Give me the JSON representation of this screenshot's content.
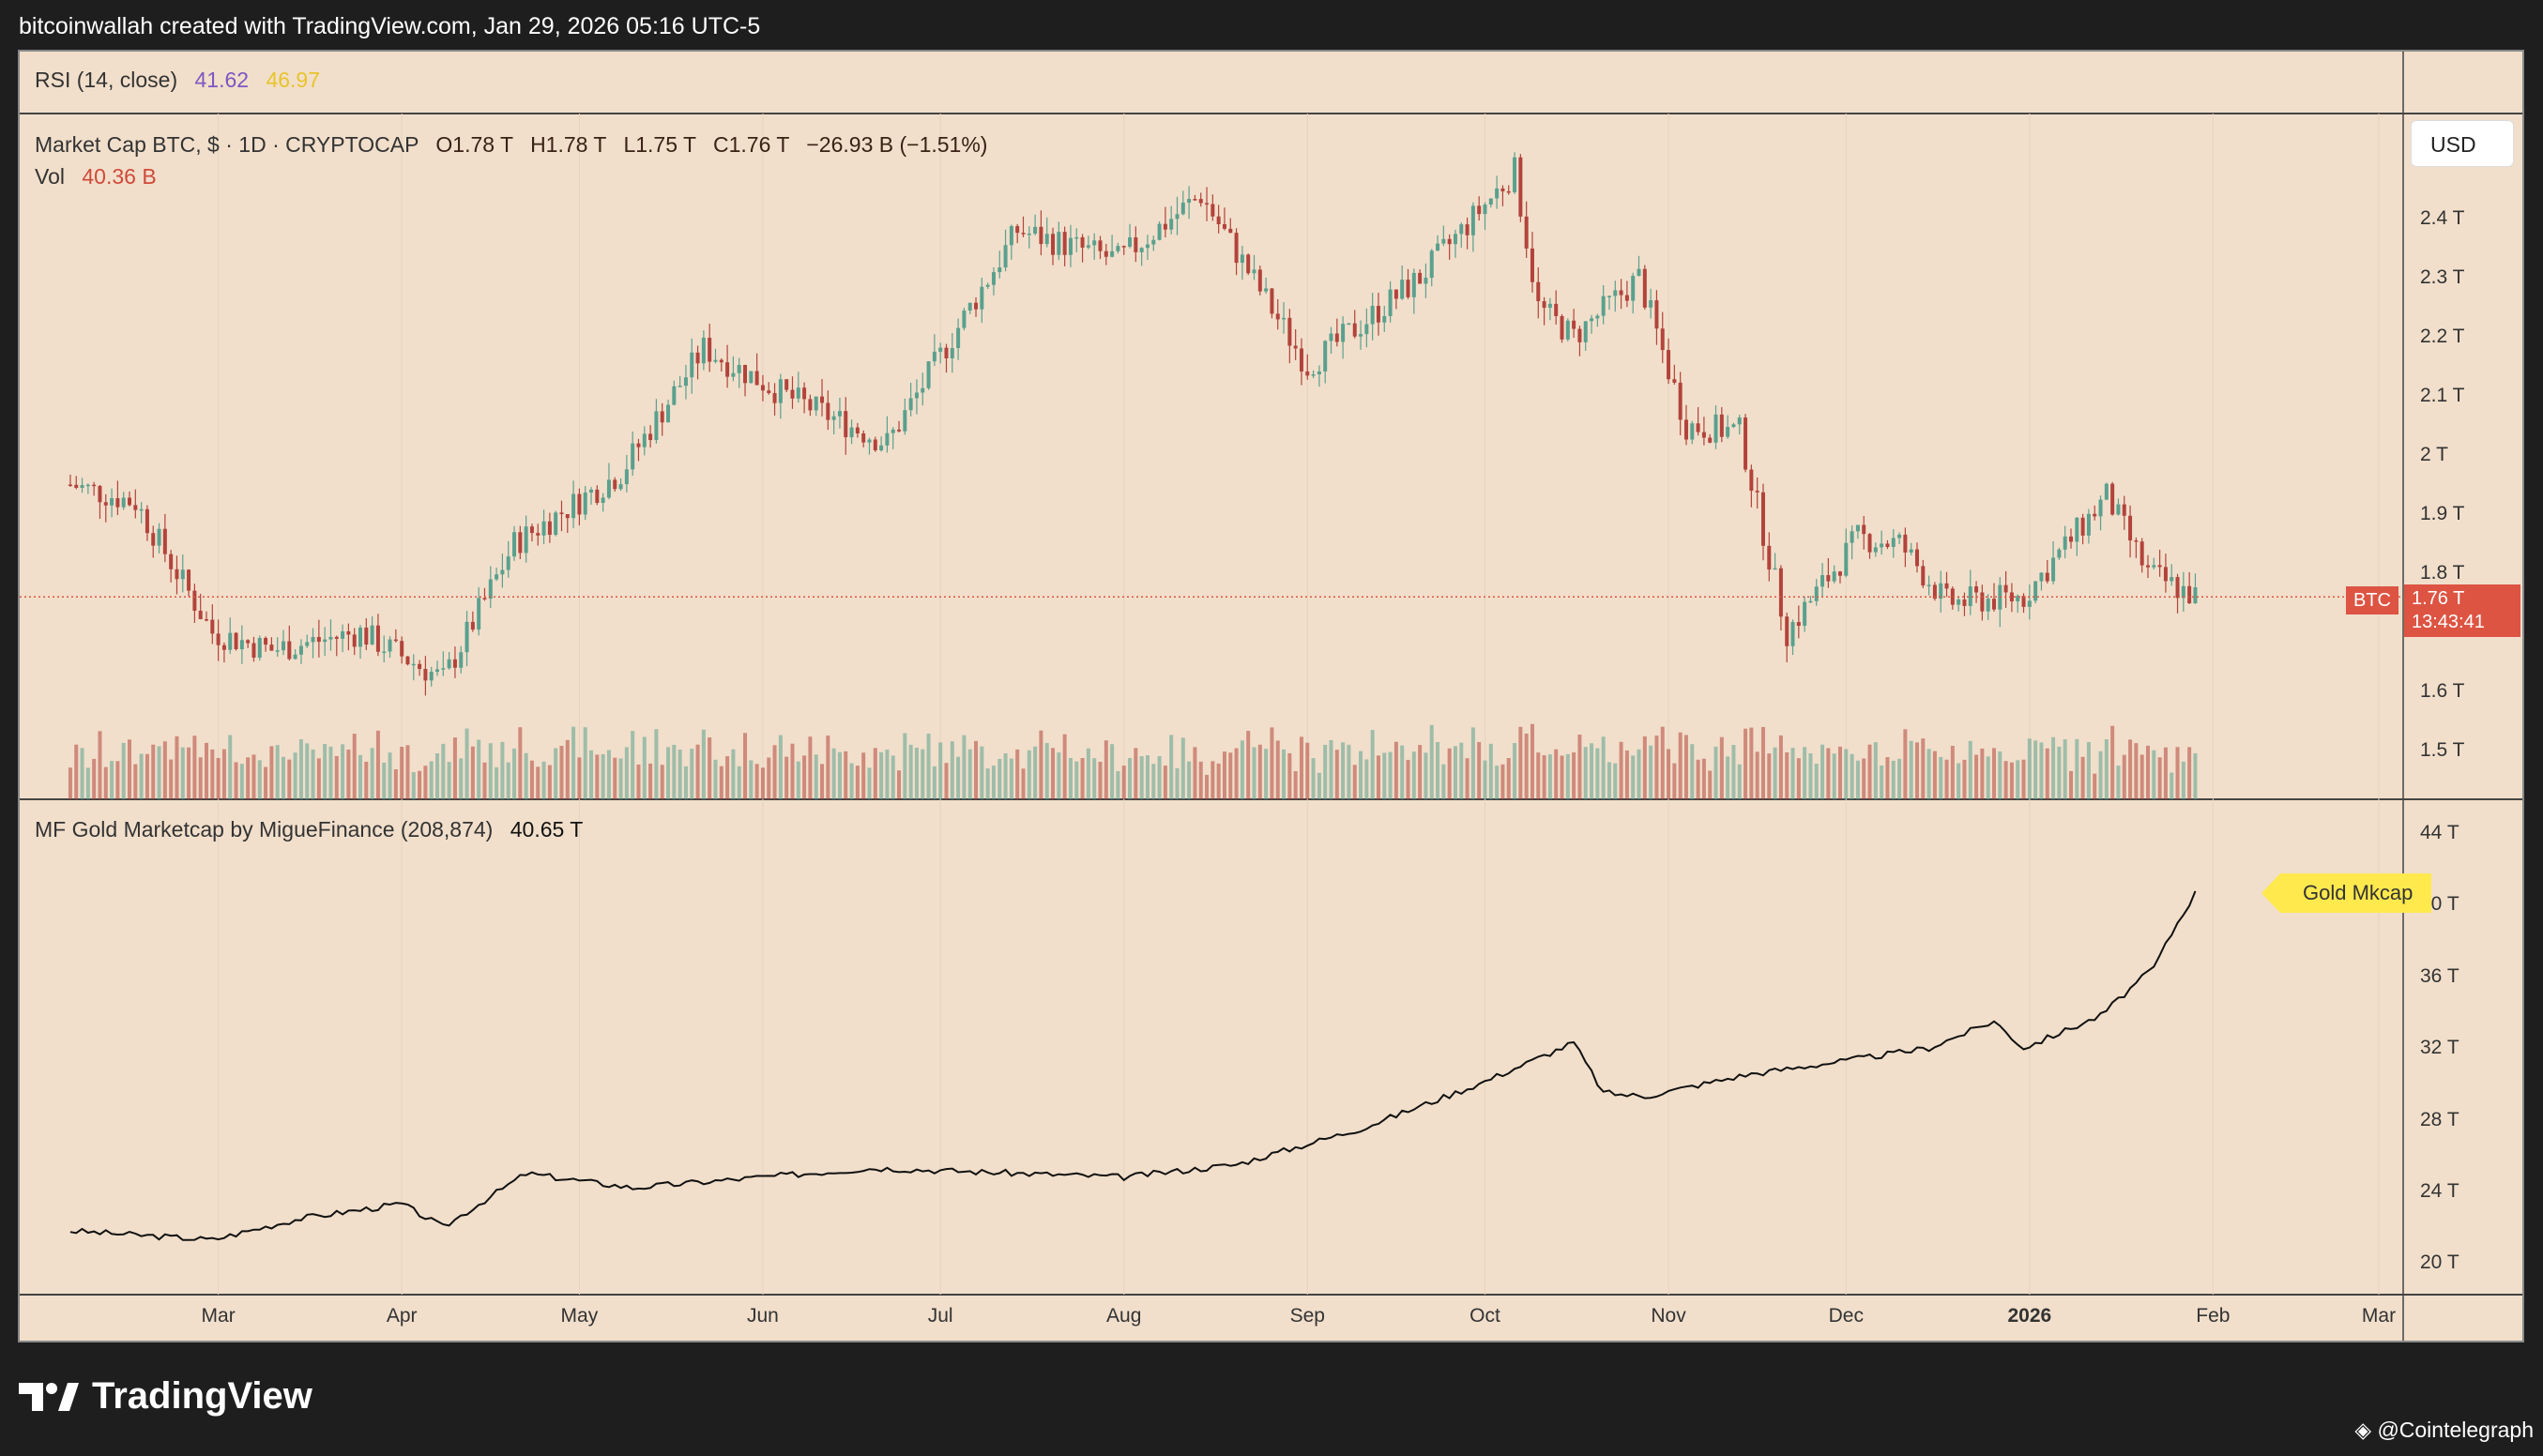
{
  "header": {
    "caption": "bitcoinwallah created with TradingView.com, Jan 29, 2026 05:16 UTC-5"
  },
  "rsi_legend": {
    "label": "RSI (14, close)",
    "value1": "41.62",
    "value2": "46.97"
  },
  "main_legend": {
    "symbol": "Market Cap BTC, $ · 1D · CRYPTOCAP",
    "open": "O1.78 T",
    "high": "H1.78 T",
    "low": "L1.75 T",
    "close": "C1.76 T",
    "change": "−26.93 B (−1.51%)",
    "vol_label": "Vol",
    "vol_value": "40.36 B"
  },
  "gold_legend": {
    "label": "MF Gold Marketcap by MigueFinance (208,874)",
    "value": "40.65 T"
  },
  "currency_button": "USD",
  "price_tag": {
    "symbol": "BTC",
    "price": "1.76 T",
    "countdown": "13:43:41"
  },
  "gold_tag": "Gold Mkcap",
  "brand": "TradingView",
  "credit": "@Cointelegraph",
  "colors": {
    "up": "#5aa08e",
    "down": "#b2433b",
    "bg": "#f1dfcb",
    "line": "#111111",
    "tag": "#dd5443"
  },
  "chart_data": [
    {
      "type": "candlestick",
      "title": "Market Cap BTC, $ · 1D · CRYPTOCAP",
      "y_unit": "T",
      "y_ticks": [
        "2.4 T",
        "2.3 T",
        "2.2 T",
        "2.1 T",
        "2 T",
        "1.9 T",
        "1.8 T",
        "1.6 T",
        "1.5 T"
      ],
      "y_tick_values": [
        2.4,
        2.3,
        2.2,
        2.1,
        2.0,
        1.9,
        1.8,
        1.6,
        1.5
      ],
      "x_ticks": [
        "Mar",
        "Apr",
        "May",
        "Jun",
        "Jul",
        "Aug",
        "Sep",
        "Oct",
        "Nov",
        "Dec",
        "2026",
        "Feb",
        "Mar"
      ],
      "x_tick_dates": [
        "2025-03-01",
        "2025-04-01",
        "2025-05-01",
        "2025-06-01",
        "2025-07-01",
        "2025-08-01",
        "2025-09-01",
        "2025-10-01",
        "2025-11-01",
        "2025-12-01",
        "2026-01-01",
        "2026-02-01",
        "2026-03-01"
      ],
      "key_points": {
        "dates": [
          "2025-02-04",
          "2025-02-15",
          "2025-02-28",
          "2025-03-10",
          "2025-03-25",
          "2025-04-08",
          "2025-04-20",
          "2025-05-08",
          "2025-05-22",
          "2025-06-05",
          "2025-06-22",
          "2025-07-14",
          "2025-07-31",
          "2025-08-14",
          "2025-09-01",
          "2025-09-20",
          "2025-10-06",
          "2025-10-10",
          "2025-10-16",
          "2025-10-27",
          "2025-11-04",
          "2025-11-13",
          "2025-11-21",
          "2025-12-03",
          "2025-12-10",
          "2025-12-18",
          "2025-12-31",
          "2026-01-14",
          "2026-01-21",
          "2026-01-29"
        ],
        "close": [
          1.95,
          1.92,
          1.7,
          1.67,
          1.7,
          1.62,
          1.85,
          1.97,
          2.18,
          2.1,
          2.02,
          2.38,
          2.33,
          2.44,
          2.15,
          2.3,
          2.48,
          2.25,
          2.2,
          2.3,
          2.05,
          2.04,
          1.7,
          1.86,
          1.85,
          1.75,
          1.76,
          1.93,
          1.8,
          1.76
        ]
      },
      "last_close": "1.76 T"
    },
    {
      "type": "bar",
      "title": "Vol",
      "last_value": "40.36 B"
    },
    {
      "type": "line",
      "title": "MF Gold Marketcap by MigueFinance (208,874)",
      "y_ticks": [
        "44 T",
        "40 T",
        "36 T",
        "32 T",
        "28 T",
        "24 T",
        "20 T"
      ],
      "y_tick_values": [
        44,
        40,
        36,
        32,
        28,
        24,
        20
      ],
      "key_points": {
        "dates": [
          "2025-02-04",
          "2025-02-28",
          "2025-03-15",
          "2025-04-01",
          "2025-04-08",
          "2025-04-22",
          "2025-05-10",
          "2025-06-01",
          "2025-06-20",
          "2025-07-15",
          "2025-08-01",
          "2025-08-20",
          "2025-09-10",
          "2025-09-30",
          "2025-10-16",
          "2025-10-21",
          "2025-10-28",
          "2025-11-14",
          "2025-12-01",
          "2025-12-15",
          "2025-12-26",
          "2025-12-31",
          "2026-01-13",
          "2026-01-22",
          "2026-01-26",
          "2026-01-29"
        ],
        "values": [
          21.8,
          21.3,
          22.5,
          23.3,
          22.0,
          25.0,
          24.2,
          24.8,
          25.3,
          25.0,
          24.8,
          25.5,
          27.5,
          30.0,
          32.3,
          29.5,
          29.3,
          30.5,
          31.3,
          32.0,
          33.5,
          32.0,
          33.8,
          36.5,
          39.0,
          40.65
        ]
      },
      "last_value": "40.65 T"
    }
  ]
}
